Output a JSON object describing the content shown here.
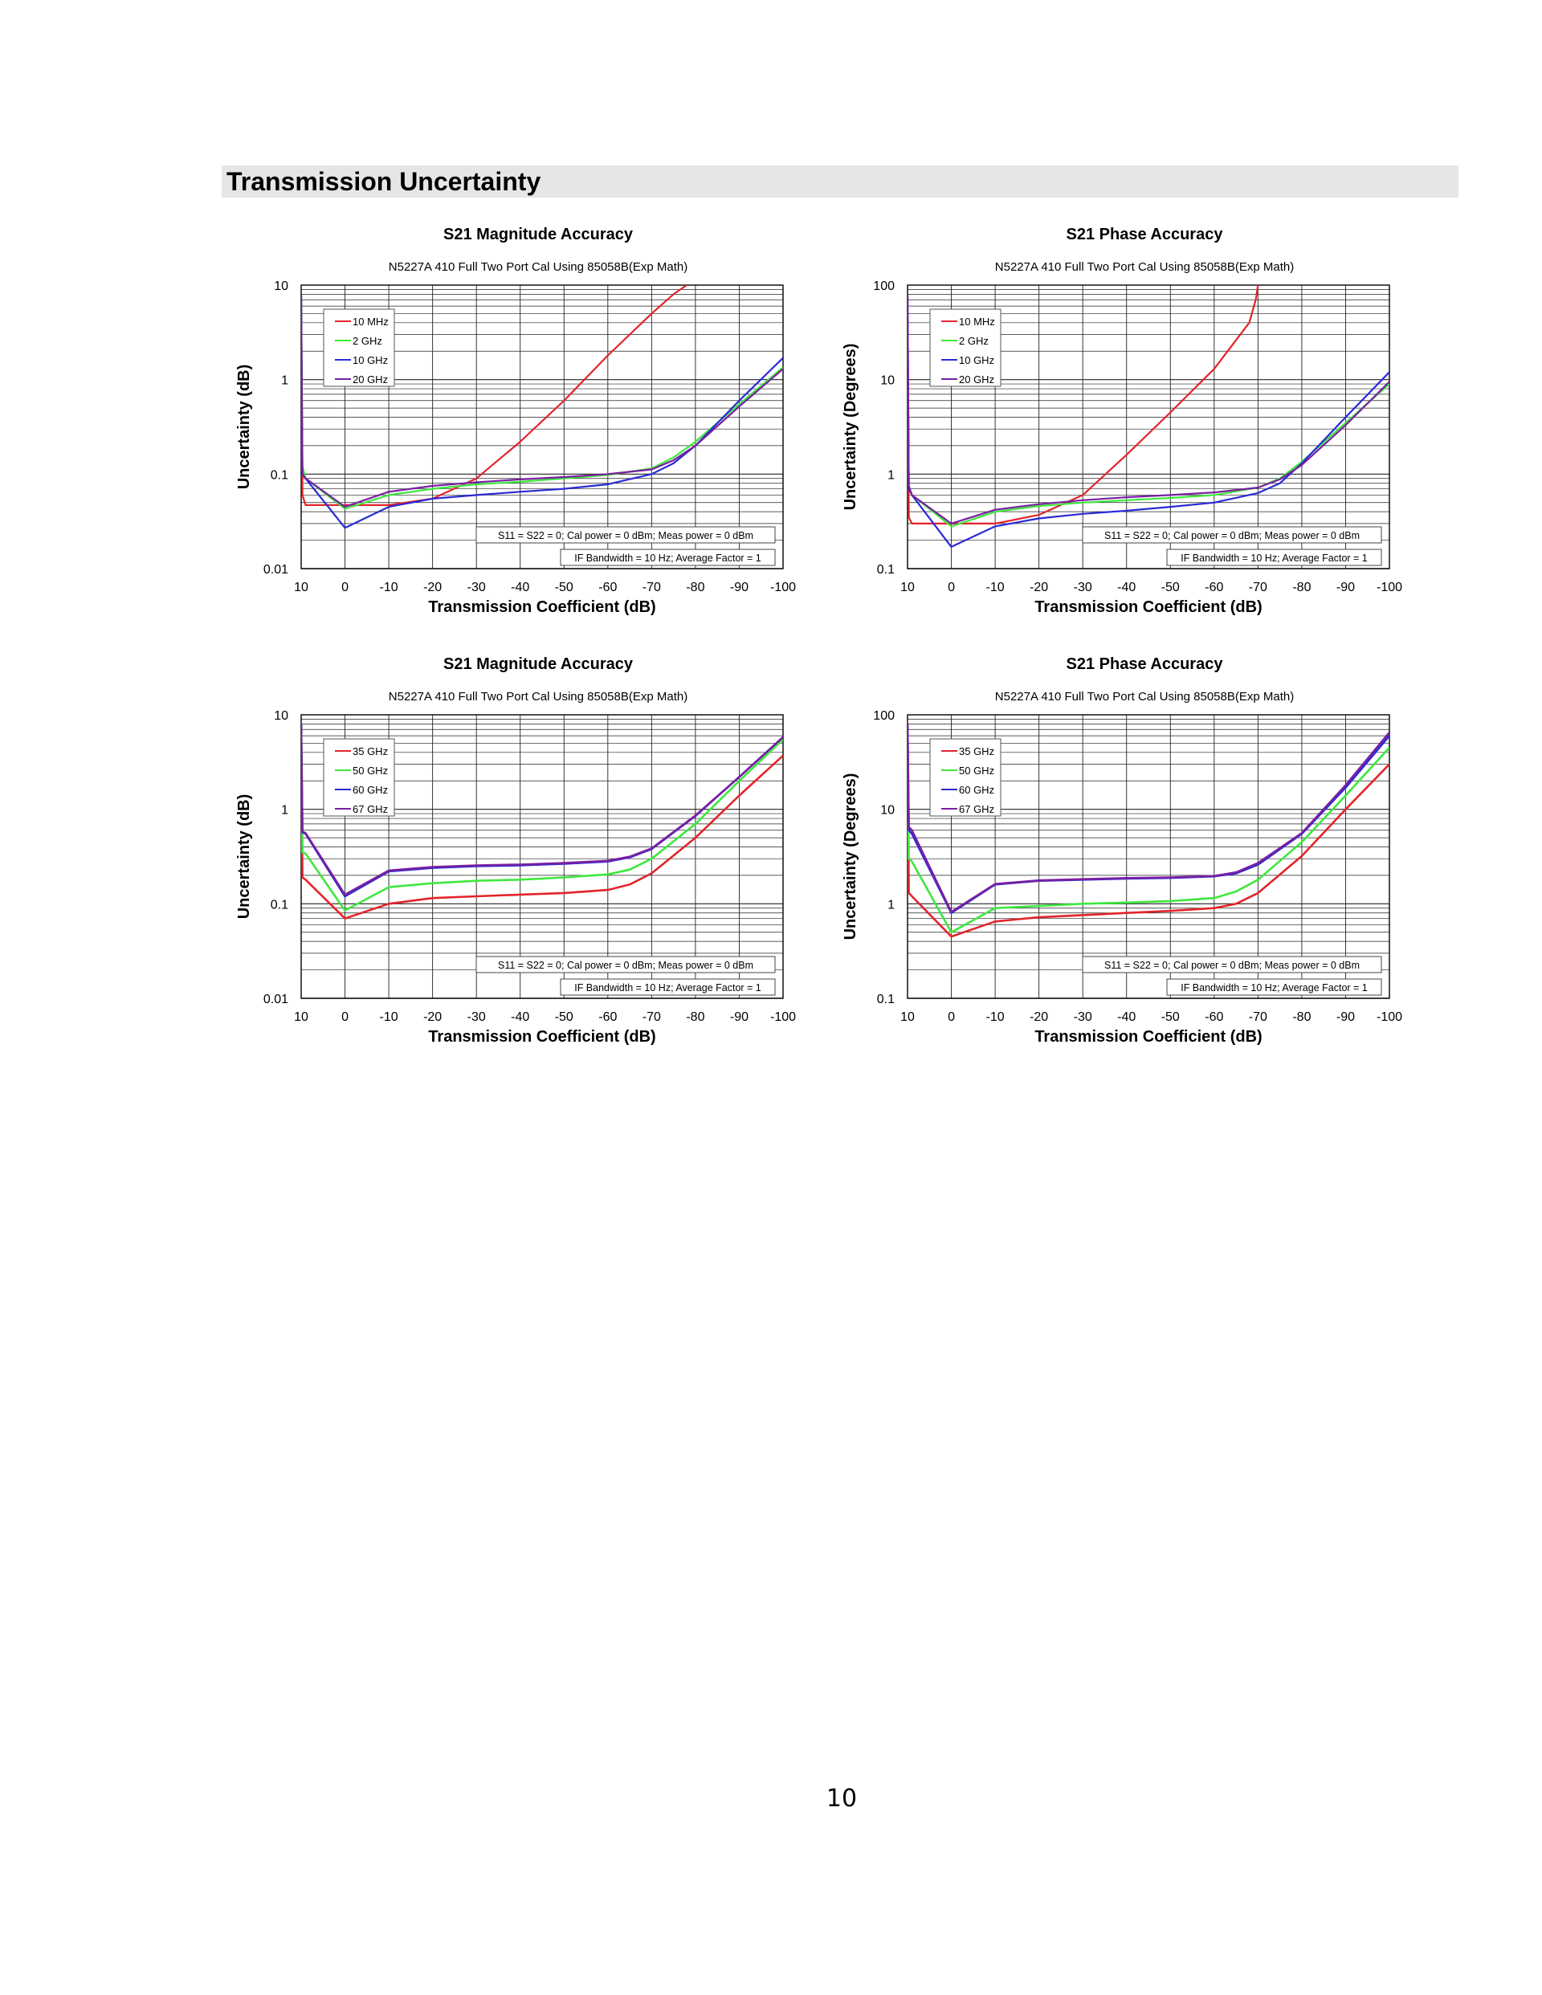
{
  "section": {
    "title": "Transmission Uncertainty"
  },
  "page": {
    "number": "10"
  },
  "colors": {
    "red": "#e3242b",
    "green": "#3ee83e",
    "blue": "#2a2ad6",
    "purple": "#7a1fa2"
  },
  "chart_data": [
    {
      "type": "line",
      "title": "S21 Magnitude Accuracy",
      "subtitle": "N5227A 410 Full Two Port Cal Using 85058B(Exp Math)",
      "xlabel": "Transmission Coefficient (dB)",
      "ylabel": "Uncertainty (dB)",
      "xlim": [
        10,
        -100
      ],
      "ylim": [
        0.01,
        10
      ],
      "yscale": "log",
      "x_ticks": [
        "10",
        "0",
        "-10",
        "-20",
        "-30",
        "-40",
        "-50",
        "-60",
        "-70",
        "-80",
        "-90",
        "-100"
      ],
      "y_ticks": [
        "10",
        "1",
        "0.1",
        "0.01"
      ],
      "grid": true,
      "legend_position": "top-left",
      "annotations": [
        "S11 = S22 = 0; Cal power = 0 dBm; Meas power = 0 dBm",
        "IF Bandwidth = 10 Hz; Average Factor = 1"
      ],
      "series": [
        {
          "name": "10 MHz",
          "color": "#e3242b",
          "x": [
            10,
            9.7,
            9,
            5,
            0,
            -10,
            -20,
            -30,
            -40,
            -50,
            -60,
            -70,
            -75,
            -78
          ],
          "y": [
            8.0,
            0.06,
            0.047,
            0.047,
            0.047,
            0.047,
            0.055,
            0.09,
            0.22,
            0.6,
            1.8,
            5.0,
            8.0,
            10.0
          ]
        },
        {
          "name": "2 GHz",
          "color": "#3ee83e",
          "x": [
            10,
            9.7,
            9,
            0,
            -10,
            -20,
            -30,
            -40,
            -50,
            -60,
            -70,
            -75,
            -80,
            -90,
            -100
          ],
          "y": [
            8.0,
            0.12,
            0.09,
            0.043,
            0.06,
            0.07,
            0.078,
            0.083,
            0.09,
            0.098,
            0.115,
            0.15,
            0.22,
            0.55,
            1.35
          ]
        },
        {
          "name": "10 GHz",
          "color": "#2a2ad6",
          "x": [
            10,
            9.7,
            9,
            0,
            -10,
            -20,
            -30,
            -40,
            -50,
            -60,
            -70,
            -75,
            -80,
            -90,
            -100
          ],
          "y": [
            8.0,
            0.1,
            0.09,
            0.027,
            0.045,
            0.055,
            0.06,
            0.065,
            0.07,
            0.078,
            0.1,
            0.13,
            0.2,
            0.6,
            1.7
          ]
        },
        {
          "name": "20 GHz",
          "color": "#7a1fa2",
          "x": [
            10,
            9.7,
            9,
            0,
            -10,
            -20,
            -30,
            -40,
            -50,
            -60,
            -70,
            -75,
            -80,
            -90,
            -100
          ],
          "y": [
            8.0,
            0.1,
            0.09,
            0.045,
            0.065,
            0.075,
            0.082,
            0.088,
            0.093,
            0.1,
            0.112,
            0.14,
            0.2,
            0.52,
            1.3
          ]
        }
      ]
    },
    {
      "type": "line",
      "title": "S21 Phase Accuracy",
      "subtitle": "N5227A 410 Full Two Port Cal Using 85058B(Exp Math)",
      "xlabel": "Transmission Coefficient (dB)",
      "ylabel": "Uncertainty (Degrees)",
      "xlim": [
        10,
        -100
      ],
      "ylim": [
        0.1,
        100
      ],
      "yscale": "log",
      "x_ticks": [
        "10",
        "0",
        "-10",
        "-20",
        "-30",
        "-40",
        "-50",
        "-60",
        "-70",
        "-80",
        "-90",
        "-100"
      ],
      "y_ticks": [
        "100",
        "10",
        "1",
        "0.1"
      ],
      "grid": true,
      "legend_position": "top-left",
      "annotations": [
        "S11 = S22 = 0; Cal power = 0 dBm; Meas power = 0 dBm",
        "IF Bandwidth = 10 Hz; Average Factor = 1"
      ],
      "series": [
        {
          "name": "10 MHz",
          "color": "#e3242b",
          "x": [
            10,
            9.7,
            9,
            5,
            0,
            -10,
            -20,
            -30,
            -40,
            -50,
            -60,
            -68,
            -69.5,
            -70
          ],
          "y": [
            80,
            0.35,
            0.3,
            0.3,
            0.3,
            0.3,
            0.37,
            0.6,
            1.6,
            4.5,
            13,
            40,
            70,
            100
          ]
        },
        {
          "name": "2 GHz",
          "color": "#3ee83e",
          "x": [
            10,
            9.7,
            9,
            0,
            -10,
            -20,
            -30,
            -40,
            -50,
            -60,
            -70,
            -75,
            -80,
            -90,
            -100
          ],
          "y": [
            80,
            0.75,
            0.6,
            0.28,
            0.4,
            0.46,
            0.5,
            0.53,
            0.56,
            0.6,
            0.72,
            0.9,
            1.35,
            3.5,
            9.0
          ]
        },
        {
          "name": "10 GHz",
          "color": "#2a2ad6",
          "x": [
            10,
            9.7,
            9,
            0,
            -10,
            -20,
            -30,
            -40,
            -50,
            -60,
            -70,
            -75,
            -80,
            -90,
            -100
          ],
          "y": [
            80,
            0.7,
            0.6,
            0.17,
            0.28,
            0.34,
            0.38,
            0.41,
            0.45,
            0.5,
            0.63,
            0.8,
            1.3,
            4.0,
            12.0
          ]
        },
        {
          "name": "20 GHz",
          "color": "#7a1fa2",
          "x": [
            10,
            9.7,
            9,
            0,
            -10,
            -20,
            -30,
            -40,
            -50,
            -60,
            -70,
            -75,
            -80,
            -90,
            -100
          ],
          "y": [
            80,
            0.75,
            0.6,
            0.3,
            0.42,
            0.48,
            0.53,
            0.57,
            0.6,
            0.64,
            0.72,
            0.88,
            1.25,
            3.3,
            9.5
          ]
        }
      ]
    },
    {
      "type": "line",
      "title": "S21 Magnitude Accuracy",
      "subtitle": "N5227A 410 Full Two Port Cal Using 85058B(Exp Math)",
      "xlabel": "Transmission Coefficient (dB)",
      "ylabel": "Uncertainty (dB)",
      "xlim": [
        10,
        -100
      ],
      "ylim": [
        0.01,
        10
      ],
      "yscale": "log",
      "x_ticks": [
        "10",
        "0",
        "-10",
        "-20",
        "-30",
        "-40",
        "-50",
        "-60",
        "-70",
        "-80",
        "-90",
        "-100"
      ],
      "y_ticks": [
        "10",
        "1",
        "0.1",
        "0.01"
      ],
      "grid": true,
      "legend_position": "top-left",
      "annotations": [
        "S11 = S22 = 0; Cal power = 0 dBm; Meas power = 0 dBm",
        "IF Bandwidth = 10 Hz; Average Factor = 1"
      ],
      "series": [
        {
          "name": "35 GHz",
          "color": "#e3242b",
          "x": [
            10,
            9.7,
            9,
            0,
            -10,
            -20,
            -30,
            -40,
            -50,
            -60,
            -65,
            -70,
            -80,
            -90,
            -100
          ],
          "y": [
            8.0,
            0.19,
            0.18,
            0.07,
            0.1,
            0.115,
            0.12,
            0.125,
            0.13,
            0.14,
            0.16,
            0.21,
            0.5,
            1.4,
            3.7
          ]
        },
        {
          "name": "50 GHz",
          "color": "#3ee83e",
          "x": [
            10,
            9.7,
            9,
            0,
            -10,
            -20,
            -30,
            -40,
            -50,
            -60,
            -65,
            -70,
            -80,
            -90,
            -100
          ],
          "y": [
            8.0,
            0.35,
            0.34,
            0.085,
            0.15,
            0.165,
            0.175,
            0.18,
            0.19,
            0.205,
            0.23,
            0.3,
            0.7,
            2.0,
            5.5
          ]
        },
        {
          "name": "60 GHz",
          "color": "#2a2ad6",
          "x": [
            10,
            9.7,
            9,
            0,
            -10,
            -20,
            -30,
            -40,
            -50,
            -60,
            -65,
            -70,
            -80,
            -90,
            -100
          ],
          "y": [
            8.0,
            0.57,
            0.55,
            0.12,
            0.22,
            0.24,
            0.25,
            0.255,
            0.265,
            0.28,
            0.31,
            0.38,
            0.85,
            2.2,
            5.8
          ]
        },
        {
          "name": "67 GHz",
          "color": "#7a1fa2",
          "x": [
            10,
            9.7,
            9,
            0,
            -10,
            -20,
            -30,
            -40,
            -50,
            -60,
            -65,
            -70,
            -80,
            -90,
            -100
          ],
          "y": [
            8.0,
            0.58,
            0.56,
            0.125,
            0.225,
            0.245,
            0.255,
            0.26,
            0.27,
            0.285,
            0.315,
            0.385,
            0.86,
            2.2,
            5.8
          ]
        }
      ]
    },
    {
      "type": "line",
      "title": "S21 Phase Accuracy",
      "subtitle": "N5227A 410 Full Two Port Cal Using 85058B(Exp Math)",
      "xlabel": "Transmission Coefficient (dB)",
      "ylabel": "Uncertainty (Degrees)",
      "xlim": [
        10,
        -100
      ],
      "ylim": [
        0.1,
        100
      ],
      "yscale": "log",
      "x_ticks": [
        "10",
        "0",
        "-10",
        "-20",
        "-30",
        "-40",
        "-50",
        "-60",
        "-70",
        "-80",
        "-90",
        "-100"
      ],
      "y_ticks": [
        "100",
        "10",
        "1",
        "0.1"
      ],
      "grid": true,
      "legend_position": "top-left",
      "annotations": [
        "S11 = S22 = 0; Cal power = 0 dBm; Meas power = 0 dBm",
        "IF Bandwidth = 10 Hz; Average Factor = 1"
      ],
      "series": [
        {
          "name": "35 GHz",
          "color": "#e3242b",
          "x": [
            10,
            9.7,
            9,
            0,
            -10,
            -20,
            -30,
            -40,
            -50,
            -60,
            -65,
            -70,
            -80,
            -90,
            -100
          ],
          "y": [
            80,
            1.3,
            1.2,
            0.45,
            0.65,
            0.72,
            0.76,
            0.8,
            0.84,
            0.9,
            1.0,
            1.3,
            3.2,
            10,
            30
          ]
        },
        {
          "name": "50 GHz",
          "color": "#3ee83e",
          "x": [
            10,
            9.7,
            9,
            0,
            -10,
            -20,
            -30,
            -40,
            -50,
            -60,
            -65,
            -70,
            -80,
            -90,
            -100
          ],
          "y": [
            80,
            3.0,
            2.8,
            0.5,
            0.9,
            0.95,
            1.0,
            1.03,
            1.07,
            1.15,
            1.35,
            1.8,
            4.5,
            14,
            45
          ]
        },
        {
          "name": "60 GHz",
          "color": "#2a2ad6",
          "x": [
            10,
            9.7,
            9,
            0,
            -10,
            -20,
            -30,
            -40,
            -50,
            -60,
            -65,
            -70,
            -80,
            -90,
            -100
          ],
          "y": [
            80,
            6.0,
            5.5,
            0.8,
            1.6,
            1.75,
            1.8,
            1.85,
            1.88,
            1.95,
            2.1,
            2.6,
            5.5,
            17,
            60
          ]
        },
        {
          "name": "67 GHz",
          "color": "#7a1fa2",
          "x": [
            10,
            9.7,
            9,
            0,
            -10,
            -20,
            -30,
            -40,
            -50,
            -60,
            -65,
            -70,
            -80,
            -90,
            -100
          ],
          "y": [
            80,
            6.5,
            6.0,
            0.82,
            1.62,
            1.77,
            1.82,
            1.87,
            1.9,
            1.97,
            2.15,
            2.7,
            5.6,
            18,
            65
          ]
        }
      ]
    }
  ]
}
